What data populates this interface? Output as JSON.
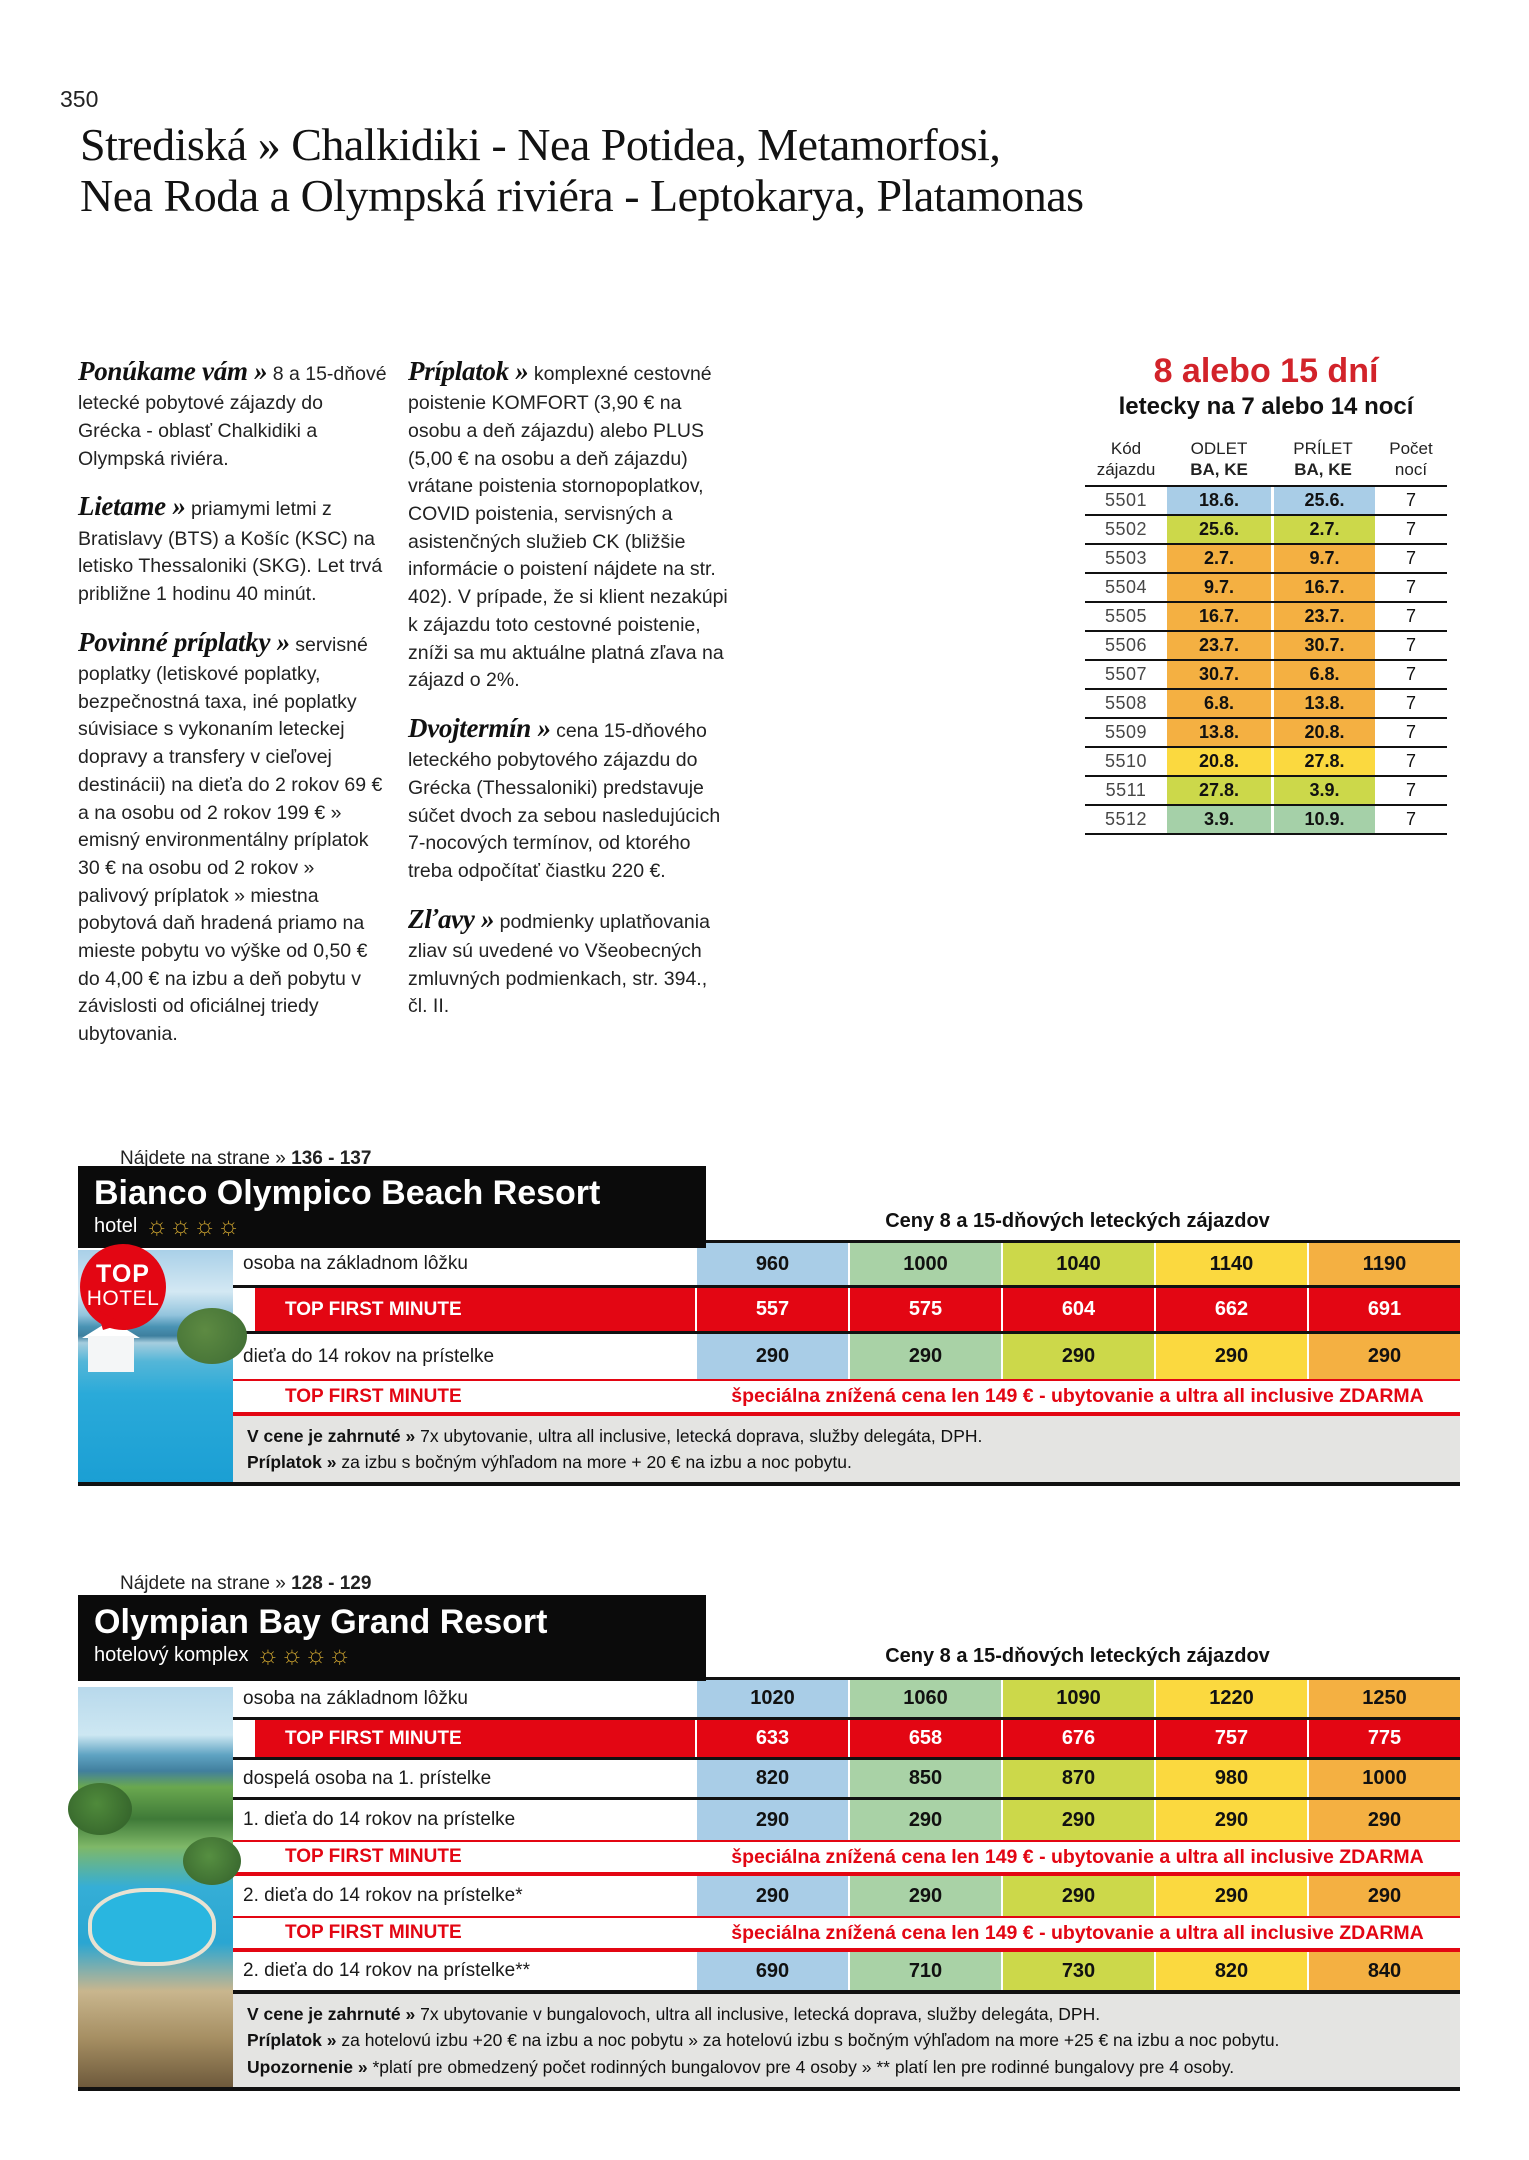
{
  "page": {
    "number": "350",
    "title_line1": "Strediská » Chalkidiki - Nea Potidea, Metamorfosi,",
    "title_line2": "Nea Roda a Olympská riviéra - Leptokarya, Platamonas"
  },
  "intro": {
    "col1": [
      {
        "head": "Ponúkame vám »",
        "body": "8 a 15-dňové letecké pobytové zájazdy do Grécka - oblasť Chalkidiki a Olympská riviéra."
      },
      {
        "head": "Lietame »",
        "body": "priamymi letmi z Bratislavy (BTS) a Košíc (KSC) na letisko Thessaloniki (SKG). Let trvá približne 1 hodinu 40 minút."
      },
      {
        "head": "Povinné príplatky »",
        "body": "servisné poplatky (letiskové poplatky, bezpečnostná taxa, iné poplatky súvisiace s vykonaním leteckej dopravy a transfery v cieľovej destinácii) na dieťa do 2 rokov 69 € a na osobu od 2 rokov 199 € » emisný environmentálny príplatok 30 € na osobu od 2 rokov » palivový príplatok » miestna pobytová daň hradená priamo na mieste pobytu vo výške od 0,50 € do 4,00 € na izbu a deň pobytu v závislosti od oficiálnej triedy ubytovania."
      }
    ],
    "col2": [
      {
        "head": "Príplatok »",
        "body": "komplexné cestovné poistenie KOMFORT (3,90 € na osobu a deň zájazdu) alebo PLUS (5,00 € na osobu a deň zájazdu) vrátane poistenia stornopoplatkov, COVID poistenia, servisných a asistenčných služieb CK (bližšie informácie o poistení nájdete na str. 402). V prípade, že si klient nezakúpi k zájazdu toto cestovné poistenie, zníži sa mu aktuálne platná zľava na zájazd o 2%."
      },
      {
        "head": "Dvojtermín »",
        "body": "cena 15-dňového leteckého pobytového zájazdu do Grécka (Thessaloniki) predstavuje súčet dvoch za sebou nasledujúcich 7-nocových termínov, od ktorého treba odpočítať čiastku 220 €."
      },
      {
        "head": "Zľavy »",
        "body": "podmienky uplatňovania zliav sú uvedené vo Všeobecných zmluvných podmienkach, str. 394., čl. II."
      }
    ]
  },
  "colors": {
    "accent_red": "#e30613",
    "title_red": "#d2232a",
    "price": [
      "#a9cde7",
      "#a9d2a6",
      "#ccd84a",
      "#fbd93f",
      "#f4b042"
    ],
    "flight": {
      "blue": "#a9cde7",
      "yellowgreen": "#ccd84a",
      "orange": "#f4b042",
      "yellow": "#fbd93f",
      "green": "#a5d0a8"
    }
  },
  "flights": {
    "title": "8 alebo 15 dní",
    "subtitle": "letecky na 7 alebo 14 nocí",
    "headers": {
      "code1": "Kód",
      "code2": "zájazdu",
      "dep1": "ODLET",
      "dep2": "BA, KE",
      "arr1": "PRÍLET",
      "arr2": "BA, KE",
      "nights1": "Počet",
      "nights2": "nocí"
    },
    "rows": [
      {
        "code": "5501",
        "dep": "18.6.",
        "arr": "25.6.",
        "nights": "7",
        "color": "blue"
      },
      {
        "code": "5502",
        "dep": "25.6.",
        "arr": "2.7.",
        "nights": "7",
        "color": "yellowgreen"
      },
      {
        "code": "5503",
        "dep": "2.7.",
        "arr": "9.7.",
        "nights": "7",
        "color": "orange"
      },
      {
        "code": "5504",
        "dep": "9.7.",
        "arr": "16.7.",
        "nights": "7",
        "color": "orange"
      },
      {
        "code": "5505",
        "dep": "16.7.",
        "arr": "23.7.",
        "nights": "7",
        "color": "orange"
      },
      {
        "code": "5506",
        "dep": "23.7.",
        "arr": "30.7.",
        "nights": "7",
        "color": "orange"
      },
      {
        "code": "5507",
        "dep": "30.7.",
        "arr": "6.8.",
        "nights": "7",
        "color": "orange"
      },
      {
        "code": "5508",
        "dep": "6.8.",
        "arr": "13.8.",
        "nights": "7",
        "color": "orange"
      },
      {
        "code": "5509",
        "dep": "13.8.",
        "arr": "20.8.",
        "nights": "7",
        "color": "orange"
      },
      {
        "code": "5510",
        "dep": "20.8.",
        "arr": "27.8.",
        "nights": "7",
        "color": "yellow"
      },
      {
        "code": "5511",
        "dep": "27.8.",
        "arr": "3.9.",
        "nights": "7",
        "color": "yellowgreen"
      },
      {
        "code": "5512",
        "dep": "3.9.",
        "arr": "10.9.",
        "nights": "7",
        "color": "green"
      }
    ]
  },
  "hotels": [
    {
      "find_label": "Nájdete na strane »",
      "pages": "136 - 137",
      "name": "Bianco Olympico Beach Resort",
      "category": "hotel",
      "suns": 4,
      "badge": {
        "line1": "TOP",
        "line2": "HOTEL"
      },
      "price_header": "Ceny 8 a 15-dňových leteckých zájazdov",
      "rows": [
        {
          "type": "normal",
          "label": "osoba na základnom lôžku",
          "values": [
            "960",
            "1000",
            "1040",
            "1140",
            "1190"
          ]
        },
        {
          "type": "tfm",
          "label": "TOP FIRST MINUTE",
          "values": [
            "557",
            "575",
            "604",
            "662",
            "691"
          ]
        },
        {
          "type": "normal",
          "label": "dieťa do 14 rokov na prístelke",
          "values": [
            "290",
            "290",
            "290",
            "290",
            "290"
          ]
        },
        {
          "type": "special",
          "label": "TOP FIRST MINUTE",
          "text": "špeciálna znížená cena len 149 € - ubytovanie a ultra all inclusive ZDARMA"
        }
      ],
      "notes": [
        {
          "head": "V cene je zahrnuté »",
          "text": "7x ubytovanie, ultra all inclusive, letecká doprava, služby delegáta, DPH."
        },
        {
          "head": "Príplatok »",
          "text": "za izbu s bočným výhľadom na more + 20 € na izbu a noc pobytu."
        }
      ]
    },
    {
      "find_label": "Nájdete na strane »",
      "pages": "128 - 129",
      "name": "Olympian Bay Grand Resort",
      "category": "hotelový komplex",
      "suns": 4,
      "price_header": "Ceny 8 a 15-dňových leteckých zájazdov",
      "rows": [
        {
          "type": "normal",
          "label": "osoba na základnom lôžku",
          "values": [
            "1020",
            "1060",
            "1090",
            "1220",
            "1250"
          ]
        },
        {
          "type": "tfm",
          "label": "TOP FIRST MINUTE",
          "values": [
            "633",
            "658",
            "676",
            "757",
            "775"
          ]
        },
        {
          "type": "normal",
          "label": "dospelá osoba na 1. prístelke",
          "values": [
            "820",
            "850",
            "870",
            "980",
            "1000"
          ]
        },
        {
          "type": "normal",
          "label": "1. dieťa do 14 rokov na prístelke",
          "values": [
            "290",
            "290",
            "290",
            "290",
            "290"
          ]
        },
        {
          "type": "special",
          "label": "TOP FIRST MINUTE",
          "text": "špeciálna znížená cena len 149 € - ubytovanie a ultra all inclusive ZDARMA"
        },
        {
          "type": "normal",
          "label": "2. dieťa do 14 rokov na prístelke*",
          "values": [
            "290",
            "290",
            "290",
            "290",
            "290"
          ]
        },
        {
          "type": "special",
          "label": "TOP FIRST MINUTE",
          "text": "špeciálna znížená cena len 149 € - ubytovanie a ultra all inclusive ZDARMA"
        },
        {
          "type": "normal",
          "label": "2. dieťa do 14 rokov na prístelke**",
          "values": [
            "690",
            "710",
            "730",
            "820",
            "840"
          ]
        }
      ],
      "notes": [
        {
          "head": "V cene je zahrnuté »",
          "text": "7x ubytovanie v bungalovoch, ultra all inclusive, letecká doprava, služby delegáta, DPH."
        },
        {
          "head": "Príplatok »",
          "text": "za hotelovú izbu +20 € na izbu a noc pobytu » za hotelovú izbu s bočným výhľadom na more +25 € na izbu a noc pobytu."
        },
        {
          "head": "Upozornenie »",
          "text": "*platí pre obmedzený počet rodinných bungalovov pre 4 osoby » ** platí len pre rodinné bungalovy pre 4 osoby."
        }
      ]
    }
  ]
}
